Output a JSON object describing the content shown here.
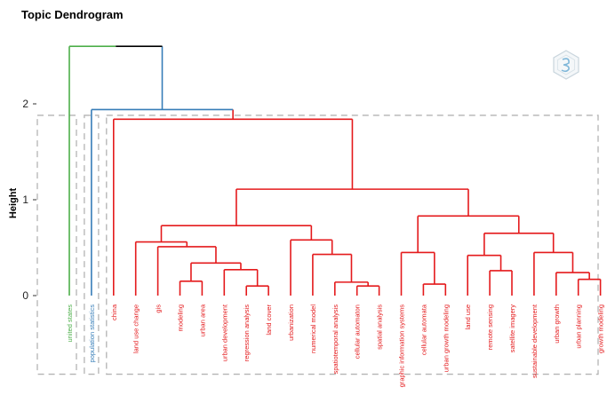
{
  "chart_data": {
    "type": "dendrogram",
    "title": "Topic Dendrogram",
    "ylabel": "Height",
    "xlabel": "",
    "ylim": [
      -0.82,
      2.62
    ],
    "yticks": [
      0,
      1,
      2
    ],
    "grid": false,
    "legend": "none",
    "logo_icon": "hexagon-logo-icon",
    "colors": {
      "root": "#000000",
      "green": "#4daf4a",
      "blue": "#377eb8",
      "red": "#e41a1c",
      "box": "#b3b3b3"
    },
    "leaves": [
      {
        "label": "united states",
        "color": "#4daf4a"
      },
      {
        "label": "population statistics",
        "color": "#377eb8"
      },
      {
        "label": "china",
        "color": "#e41a1c"
      },
      {
        "label": "land use change",
        "color": "#e41a1c"
      },
      {
        "label": "gis",
        "color": "#e41a1c"
      },
      {
        "label": "modeling",
        "color": "#e41a1c"
      },
      {
        "label": "urban area",
        "color": "#e41a1c"
      },
      {
        "label": "urban development",
        "color": "#e41a1c"
      },
      {
        "label": "regression analysis",
        "color": "#e41a1c"
      },
      {
        "label": "land cover",
        "color": "#e41a1c"
      },
      {
        "label": "urbanization",
        "color": "#e41a1c"
      },
      {
        "label": "numerical model",
        "color": "#e41a1c"
      },
      {
        "label": "spatiotemporal analysis",
        "color": "#e41a1c"
      },
      {
        "label": "cellular automaton",
        "color": "#e41a1c"
      },
      {
        "label": "spatial analysis",
        "color": "#e41a1c"
      },
      {
        "label": "graphic information systems",
        "color": "#e41a1c"
      },
      {
        "label": "cellular automata",
        "color": "#e41a1c"
      },
      {
        "label": "urban growth modeling",
        "color": "#e41a1c"
      },
      {
        "label": "land use",
        "color": "#e41a1c"
      },
      {
        "label": "remote sensing",
        "color": "#e41a1c"
      },
      {
        "label": "satellite imagery",
        "color": "#e41a1c"
      },
      {
        "label": "sustainable development",
        "color": "#e41a1c"
      },
      {
        "label": "urban growth",
        "color": "#e41a1c"
      },
      {
        "label": "urban planning",
        "color": "#e41a1c"
      },
      {
        "label": "growth modeling",
        "color": "#e41a1c"
      }
    ],
    "merges": [
      {
        "left": "L5",
        "right": "L6",
        "height": 0.15,
        "color": "#e41a1c"
      },
      {
        "left": "L8",
        "right": "L9",
        "height": 0.1,
        "color": "#e41a1c"
      },
      {
        "left": "L7",
        "right": "M1",
        "height": 0.27,
        "color": "#e41a1c"
      },
      {
        "left": "M0",
        "right": "M2",
        "height": 0.34,
        "color": "#e41a1c"
      },
      {
        "left": "L4",
        "right": "M3",
        "height": 0.51,
        "color": "#e41a1c"
      },
      {
        "left": "L3",
        "right": "M4",
        "height": 0.56,
        "color": "#e41a1c"
      },
      {
        "left": "L13",
        "right": "L14",
        "height": 0.1,
        "color": "#e41a1c"
      },
      {
        "left": "L12",
        "right": "M6",
        "height": 0.14,
        "color": "#e41a1c"
      },
      {
        "left": "L11",
        "right": "M7",
        "height": 0.43,
        "color": "#e41a1c"
      },
      {
        "left": "L10",
        "right": "M8",
        "height": 0.58,
        "color": "#e41a1c"
      },
      {
        "left": "M5",
        "right": "M9",
        "height": 0.73,
        "color": "#e41a1c"
      },
      {
        "left": "L16",
        "right": "L17",
        "height": 0.12,
        "color": "#e41a1c"
      },
      {
        "left": "L15",
        "right": "M11",
        "height": 0.45,
        "color": "#e41a1c"
      },
      {
        "left": "L19",
        "right": "L20",
        "height": 0.26,
        "color": "#e41a1c"
      },
      {
        "left": "L18",
        "right": "M13",
        "height": 0.42,
        "color": "#e41a1c"
      },
      {
        "left": "L23",
        "right": "L24",
        "height": 0.17,
        "color": "#e41a1c"
      },
      {
        "left": "L22",
        "right": "M15",
        "height": 0.24,
        "color": "#e41a1c"
      },
      {
        "left": "L21",
        "right": "M16",
        "height": 0.45,
        "color": "#e41a1c"
      },
      {
        "left": "M14",
        "right": "M17",
        "height": 0.65,
        "color": "#e41a1c"
      },
      {
        "left": "M12",
        "right": "M18",
        "height": 0.83,
        "color": "#e41a1c"
      },
      {
        "left": "M10",
        "right": "M19",
        "height": 1.11,
        "color": "#e41a1c"
      },
      {
        "left": "L2",
        "right": "M20",
        "height": 1.84,
        "color": "#e41a1c"
      },
      {
        "left": "L1",
        "right": "M21",
        "height": 1.94,
        "color": "#377eb8"
      },
      {
        "left": "L0",
        "right": "M22",
        "height": 2.6,
        "color": "#000000"
      }
    ],
    "cluster_boxes": [
      {
        "from_leaf": 0,
        "to_leaf": 0,
        "top": 1.88,
        "bottom": -0.82
      },
      {
        "from_leaf": 1,
        "to_leaf": 1,
        "top": 1.88,
        "bottom": -0.82
      },
      {
        "from_leaf": 2,
        "to_leaf": 24,
        "top": 1.88,
        "bottom": -0.82
      }
    ]
  }
}
